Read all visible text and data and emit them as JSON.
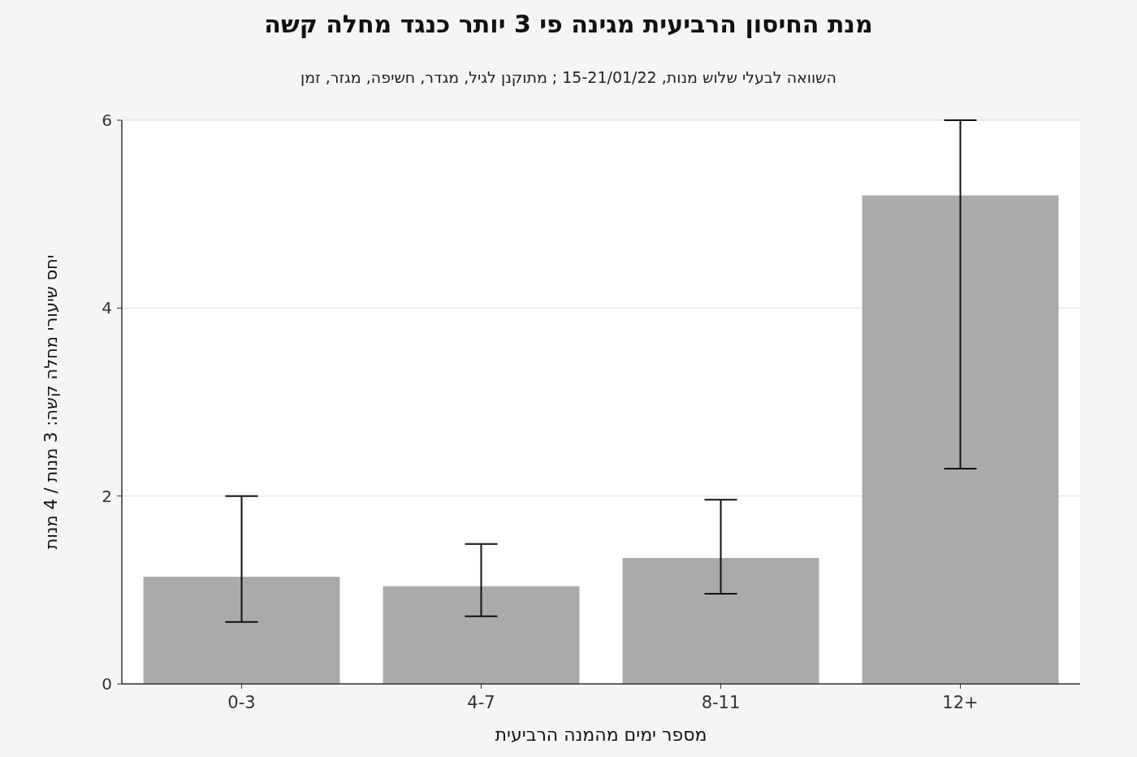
{
  "chart_data": {
    "type": "bar",
    "title": "מנת החיסון הרביעית מגינה פי 3 יותר כנגד מחלה קשה",
    "subtitle": "השוואה לבעלי שלוש מנות, 15-21/01/22 ; מתוקנן לגיל, מגדר, חשיפה, מגזר, זמן",
    "xlabel": "מספר ימים מהמנה הרביעית",
    "ylabel": "יחס שיעורי מחלה קשה: 3 מנות / 4 מנות",
    "categories": [
      "0-3",
      "4-7",
      "8-11",
      "12+"
    ],
    "series": [
      {
        "color": "#aaaaaa",
        "values": [
          1.14,
          1.04,
          1.34,
          5.2
        ],
        "errors": [
          [
            0.66,
            2.0
          ],
          [
            0.72,
            1.49
          ],
          [
            0.96,
            1.96
          ],
          [
            2.29,
            6
          ]
        ]
      }
    ],
    "ylim": [
      0,
      6
    ],
    "yticks": [
      0,
      2,
      4,
      6
    ],
    "grid": "y"
  }
}
